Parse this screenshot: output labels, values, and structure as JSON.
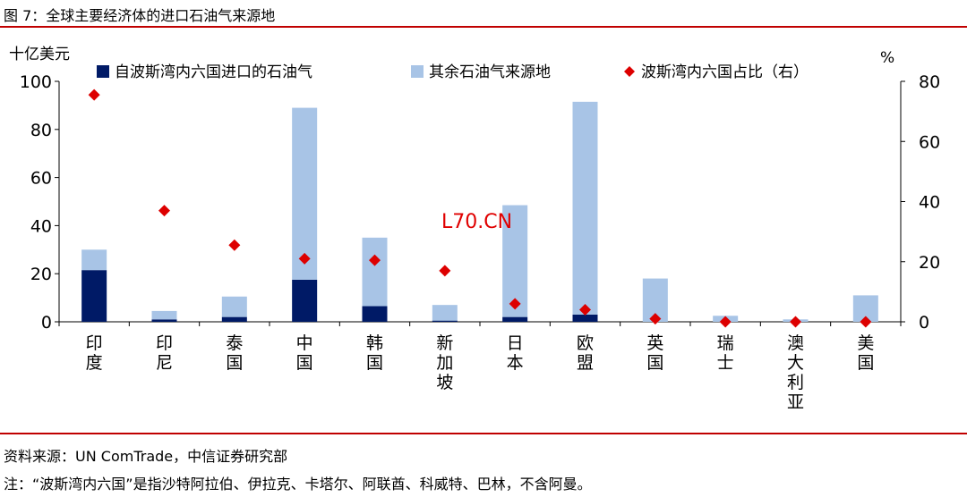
{
  "figure_title": "图 7：全球主要经济体的进口石油气来源地",
  "source_text": "资料来源：UN ComTrade，中信证券研究部",
  "note_text": "注：“波斯湾内六国”是指沙特阿拉伯、伊拉克、卡塔尔、阿联酋、科威特、巴林，不含阿曼。",
  "watermark": "L70.CN",
  "colors": {
    "rule": "#c00000",
    "persian_gulf": "#001a66",
    "other": "#a8c4e6",
    "share": "#dd0000",
    "watermark": "#e00000"
  },
  "chart_data": {
    "type": "bar",
    "stacked": true,
    "categories": [
      "印度",
      "印尼",
      "泰国",
      "中国",
      "韩国",
      "新加坡",
      "日本",
      "欧盟",
      "英国",
      "瑞士",
      "澳大利亚",
      "美国"
    ],
    "left_axis": {
      "label": "十亿美元",
      "ylim": [
        0,
        100
      ],
      "ticks": [
        0,
        20,
        40,
        60,
        80,
        100
      ]
    },
    "right_axis": {
      "label": "%",
      "ylim": [
        0,
        80
      ],
      "ticks": [
        0,
        20,
        40,
        60,
        80
      ]
    },
    "series": [
      {
        "name": "自波斯湾内六国进口的石油气",
        "kind": "bar",
        "axis": "left",
        "values": [
          21.5,
          1.0,
          2.0,
          17.5,
          6.5,
          0.5,
          2.0,
          3.0,
          0.0,
          0.0,
          0.0,
          0.0
        ]
      },
      {
        "name": "其余石油气来源地",
        "kind": "bar",
        "axis": "left",
        "values": [
          8.5,
          3.5,
          8.5,
          71.5,
          28.5,
          6.5,
          46.5,
          88.5,
          18.0,
          2.5,
          1.0,
          11.0
        ]
      },
      {
        "name": "波斯湾内六国占比（右）",
        "kind": "scatter",
        "axis": "right",
        "values": [
          75.5,
          37.0,
          25.5,
          21.0,
          20.5,
          17.0,
          6.0,
          4.0,
          1.0,
          0.0,
          0.0,
          0.0
        ]
      }
    ],
    "legend_position": "top",
    "grid": false
  }
}
